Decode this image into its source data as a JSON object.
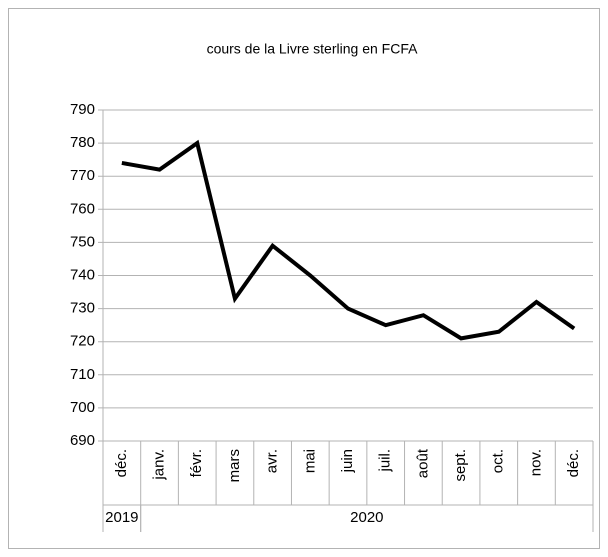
{
  "chart_data": {
    "type": "line",
    "title": "cours de la Livre sterling en FCFA",
    "categories": [
      "déc.",
      "janv.",
      "févr.",
      "mars",
      "avr.",
      "mai",
      "juin",
      "juil.",
      "août",
      "sept.",
      "oct.",
      "nov.",
      "déc."
    ],
    "category_groups": [
      {
        "name": "2019",
        "count": 1
      },
      {
        "name": "2020",
        "count": 12
      }
    ],
    "values": [
      774,
      772,
      780,
      733,
      749,
      740,
      730,
      725,
      728,
      721,
      723,
      732,
      724
    ],
    "color": "#000000",
    "ylim": [
      690,
      790
    ],
    "yticks": [
      690,
      700,
      710,
      720,
      730,
      740,
      750,
      760,
      770,
      780,
      790
    ],
    "grid": true
  }
}
